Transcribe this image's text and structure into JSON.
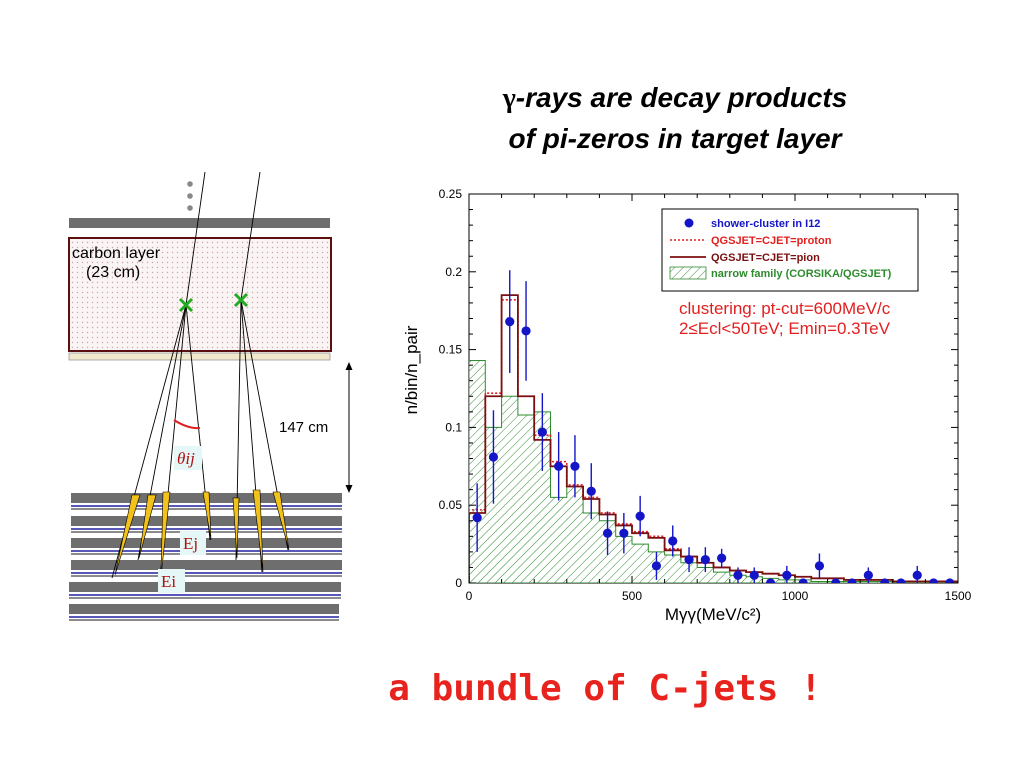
{
  "slide": {
    "title_symbol": "γ",
    "title_line1": "-rays are decay products",
    "title_line2": "of pi-zeros in target layer",
    "bottom_caption": "a bundle of C-jets !"
  },
  "diagram": {
    "carbon_label_line1": "carbon layer",
    "carbon_label_line2": "(23 cm)",
    "distance_label": "147 cm",
    "angle_label": "θij",
    "energy_label_j": "Ej",
    "energy_label_i": "Ei",
    "colors": {
      "layer": "#6e6e6e",
      "carbon_border": "#5a1010",
      "jet": "#f2c21a",
      "vertex": "#22aa22",
      "blue_line": "#2020a0",
      "angle_arc": "#e21f1f"
    }
  },
  "chart_data": {
    "type": "histogram",
    "xlabel": "Mγγ(MeV/c²)",
    "ylabel": "n/bin/n_pair",
    "xlim": [
      0,
      1500
    ],
    "ylim": [
      0,
      0.25
    ],
    "xticks": [
      "0",
      "500",
      "1000",
      "1500"
    ],
    "yticks": [
      "0",
      "0.05",
      "0.1",
      "0.15",
      "0.2",
      "0.25"
    ],
    "annotation_line1": "clustering: pt-cut=600MeV/c",
    "annotation_line2": "2≤Ecl<50TeV; Emin=0.3TeV",
    "legend": {
      "placement": "top-right",
      "entries": [
        {
          "label": "shower-cluster in I12",
          "style": "marker",
          "color": "#1515c8"
        },
        {
          "label": "QGSJET=CJET=proton",
          "style": "dotted",
          "color": "#e21f1f"
        },
        {
          "label": "QGSJET=CJET=pion",
          "style": "solid",
          "color": "#7a1010"
        },
        {
          "label": "narrow family (CORSIKA/QGSJET)",
          "style": "hatch",
          "color": "#2e8b2e"
        }
      ]
    },
    "bin_edges": [
      0,
      50,
      100,
      150,
      200,
      250,
      300,
      350,
      400,
      450,
      500,
      550,
      600,
      650,
      700,
      750,
      800,
      850,
      900,
      950,
      1000,
      1050,
      1100,
      1150,
      1200,
      1250,
      1300,
      1350,
      1400,
      1450,
      1500
    ],
    "series": [
      {
        "name": "shower-cluster in I12",
        "type": "points",
        "x": [
          25,
          75,
          125,
          175,
          225,
          275,
          325,
          375,
          425,
          475,
          525,
          575,
          625,
          675,
          725,
          775,
          825,
          875,
          925,
          975,
          1025,
          1075,
          1125,
          1175,
          1225,
          1275,
          1325,
          1375,
          1425,
          1475
        ],
        "y": [
          0.042,
          0.081,
          0.168,
          0.162,
          0.097,
          0.075,
          0.075,
          0.059,
          0.032,
          0.032,
          0.043,
          0.011,
          0.027,
          0.015,
          0.015,
          0.016,
          0.005,
          0.005,
          0.0,
          0.005,
          0.0,
          0.011,
          0.0,
          0.0,
          0.005,
          0.0,
          0.0,
          0.005,
          0.0,
          0.0
        ],
        "err": [
          0.022,
          0.03,
          0.033,
          0.032,
          0.025,
          0.022,
          0.02,
          0.018,
          0.014,
          0.013,
          0.013,
          0.009,
          0.01,
          0.008,
          0.008,
          0.006,
          0.005,
          0.005,
          0.0,
          0.006,
          0.0,
          0.008,
          0.0,
          0.0,
          0.005,
          0.0,
          0.0,
          0.006,
          0.0,
          0.0
        ]
      },
      {
        "name": "QGSJET=CJET=proton",
        "type": "step",
        "y": [
          0.047,
          0.122,
          0.182,
          0.12,
          0.095,
          0.078,
          0.063,
          0.055,
          0.045,
          0.038,
          0.033,
          0.03,
          0.022,
          0.017,
          0.013,
          0.01,
          0.008,
          0.007,
          0.006,
          0.005,
          0.004,
          0.003,
          0.003,
          0.002,
          0.002,
          0.002,
          0.001,
          0.001,
          0.001,
          0.001
        ]
      },
      {
        "name": "QGSJET=CJET=pion",
        "type": "step",
        "y": [
          0.045,
          0.12,
          0.185,
          0.12,
          0.092,
          0.075,
          0.062,
          0.054,
          0.044,
          0.037,
          0.032,
          0.029,
          0.021,
          0.017,
          0.013,
          0.01,
          0.008,
          0.007,
          0.006,
          0.005,
          0.004,
          0.003,
          0.003,
          0.002,
          0.002,
          0.002,
          0.001,
          0.001,
          0.001,
          0.001
        ]
      },
      {
        "name": "narrow family (CORSIKA/QGSJET)",
        "type": "hatched-step",
        "y": [
          0.143,
          0.1,
          0.12,
          0.108,
          0.11,
          0.055,
          0.062,
          0.045,
          0.04,
          0.03,
          0.025,
          0.02,
          0.018,
          0.013,
          0.01,
          0.007,
          0.005,
          0.004,
          0.003,
          0.002,
          0.002,
          0.001,
          0.001,
          0.001,
          0.001,
          0.001,
          0.0,
          0.0,
          0.0,
          0.0
        ]
      }
    ]
  }
}
